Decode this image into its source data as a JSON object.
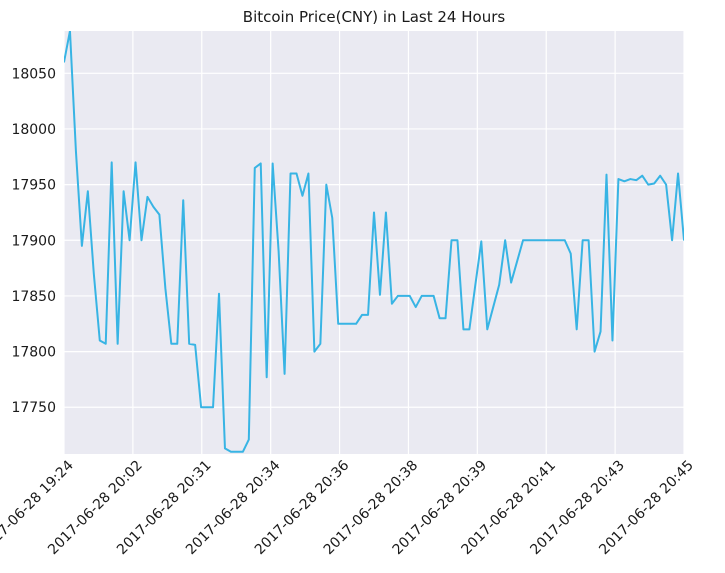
{
  "chart_data": {
    "type": "line",
    "title": "Bitcoin Price(CNY) in Last 24 Hours",
    "xlabel": "",
    "ylabel": "",
    "ylim": [
      17708,
      18088
    ],
    "grid": true,
    "legend": "none",
    "y_ticks": [
      17750,
      17800,
      17850,
      17900,
      17950,
      18000,
      18050
    ],
    "x_tick_labels": [
      "2017-06-28 19:24",
      "2017-06-28 20:02",
      "2017-06-28 20:31",
      "2017-06-28 20:34",
      "2017-06-28 20:36",
      "2017-06-28 20:38",
      "2017-06-28 20:39",
      "2017-06-28 20:41",
      "2017-06-28 20:43",
      "2017-06-28 20:45"
    ],
    "series": [
      {
        "color": "#38b4e4",
        "values": [
          18060,
          18088,
          17980,
          17895,
          17944,
          17870,
          17810,
          17807,
          17970,
          17807,
          17944,
          17900,
          17970,
          17900,
          17939,
          17930,
          17923,
          17857,
          17807,
          17807,
          17936,
          17807,
          17806,
          17750,
          17750,
          17750,
          17852,
          17713,
          17710,
          17710,
          17710,
          17721,
          17965,
          17969,
          17777,
          17969,
          17890,
          17780,
          17960,
          17960,
          17940,
          17960,
          17800,
          17807,
          17950,
          17920,
          17825,
          17825,
          17825,
          17825,
          17833,
          17833,
          17925,
          17851,
          17925,
          17843,
          17850,
          17850,
          17850,
          17840,
          17850,
          17850,
          17850,
          17830,
          17830,
          17900,
          17900,
          17820,
          17820,
          17860,
          17899,
          17820,
          17840,
          17860,
          17900,
          17862,
          17881,
          17900,
          17900,
          17900,
          17900,
          17900,
          17900,
          17900,
          17900,
          17888,
          17820,
          17900,
          17900,
          17800,
          17818,
          17959,
          17810,
          17955,
          17953,
          17955,
          17954,
          17958,
          17950,
          17951,
          17958,
          17950,
          17900,
          17960,
          17900
        ]
      }
    ]
  }
}
